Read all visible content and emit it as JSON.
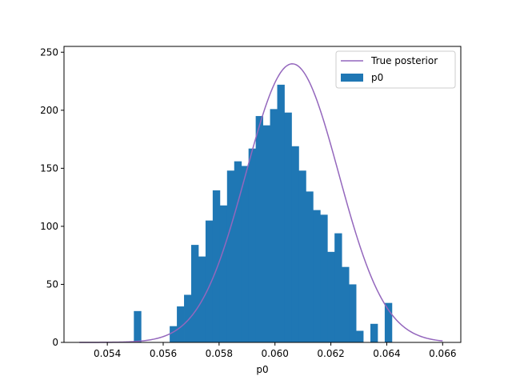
{
  "chart_data": {
    "type": "bar",
    "title": "",
    "xlabel": "p0",
    "ylabel": "",
    "xlim": [
      0.05245,
      0.06665
    ],
    "ylim": [
      0,
      255
    ],
    "grid": false,
    "legend_placement": "top-right",
    "x_ticks": [
      0.054,
      0.056,
      0.058,
      0.06,
      0.062,
      0.064,
      0.066
    ],
    "x_tick_labels": [
      "0.054",
      "0.056",
      "0.058",
      "0.060",
      "0.062",
      "0.064",
      "0.066"
    ],
    "y_ticks": [
      0,
      50,
      100,
      150,
      200,
      250
    ],
    "y_tick_labels": [
      "0",
      "50",
      "100",
      "150",
      "200",
      "250"
    ],
    "histogram": {
      "name": "p0",
      "color": "#1f77b4",
      "bin_start": 0.05495,
      "bin_width": 0.0002565,
      "counts": [
        27,
        0,
        0,
        0,
        0,
        14,
        31,
        41,
        84,
        74,
        105,
        131,
        118,
        148,
        156,
        152,
        167,
        195,
        187,
        201,
        222,
        198,
        169,
        148,
        130,
        114,
        110,
        78,
        94,
        65,
        50,
        10,
        0,
        16,
        0,
        34
      ]
    },
    "series": [
      {
        "name": "True posterior",
        "type": "line",
        "color": "#9467bd",
        "mean": 0.06062,
        "sd": 0.00166,
        "peak": 240,
        "x_range": [
          0.053,
          0.066
        ]
      }
    ]
  }
}
